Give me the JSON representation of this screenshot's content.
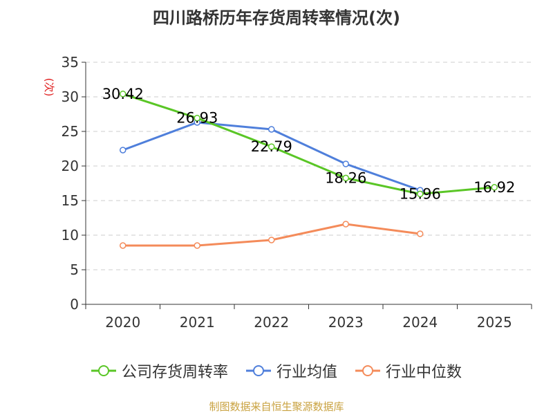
{
  "chart_data": {
    "type": "line",
    "title": "四川路桥历年存货周转率情况(次)",
    "ylabel": "(次)",
    "xlabel": "",
    "categories": [
      "2020",
      "2021",
      "2022",
      "2023",
      "2024",
      "2025"
    ],
    "ylim": [
      0,
      35
    ],
    "yticks": [
      0,
      5,
      10,
      15,
      20,
      25,
      30,
      35
    ],
    "grid": "horizontal-dashed",
    "legend_position": "bottom",
    "series": [
      {
        "name": "公司存货周转率",
        "color": "#5ac626",
        "values": [
          30.42,
          26.93,
          22.79,
          18.26,
          15.96,
          16.92
        ],
        "labels": [
          "30.42",
          "26.93",
          "22.79",
          "18.26",
          "15.96",
          "16.92"
        ]
      },
      {
        "name": "行业均值",
        "color": "#4f7fdb",
        "values": [
          22.3,
          26.3,
          25.3,
          20.3,
          16.5,
          null
        ]
      },
      {
        "name": "行业中位数",
        "color": "#f48b5a",
        "values": [
          8.5,
          8.5,
          9.3,
          11.6,
          10.2,
          null
        ]
      }
    ]
  },
  "source": "制图数据来自恒生聚源数据库"
}
